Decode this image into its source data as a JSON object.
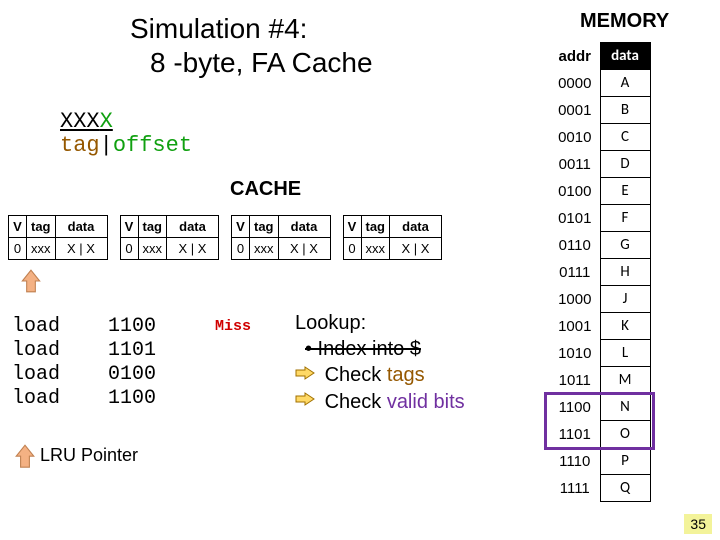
{
  "title_line1": "Simulation #4:",
  "title_line2": "8 -byte, FA Cache",
  "addr_format": {
    "x_black_count": 3,
    "x_green_count": 1,
    "tag_label": "tag",
    "offset_label": "offset",
    "tag_color": "#955800",
    "offset_color": "#10a010"
  },
  "cache_title": "CACHE",
  "cache_blocks": [
    {
      "V": "0",
      "tag": "xxx",
      "data": "X | X"
    },
    {
      "V": "0",
      "tag": "xxx",
      "data": "X | X"
    },
    {
      "V": "0",
      "tag": "xxx",
      "data": "X | X"
    },
    {
      "V": "0",
      "tag": "xxx",
      "data": "X | X"
    }
  ],
  "cache_header": {
    "V": "V",
    "tag": "tag",
    "data": "data"
  },
  "lru_arrow_color": "#f4b183",
  "loads": [
    {
      "op": "load",
      "addr": "1100"
    },
    {
      "op": "load",
      "addr": "1101"
    },
    {
      "op": "load",
      "addr": "0100"
    },
    {
      "op": "load",
      "addr": "1100"
    }
  ],
  "miss_label": "Miss",
  "miss_color": "#d00000",
  "lookup": {
    "title": "Lookup:",
    "item_strike": "• Index into $",
    "item_tags_pre": "Check ",
    "item_tags_word": "tags",
    "item_valid_pre": "Check ",
    "item_valid_word": "valid bits",
    "bullet_arrow_fill": "#ffd966",
    "bullet_arrow_stroke": "#a07000"
  },
  "lru_pointer_label": "LRU Pointer",
  "memory": {
    "title": "MEMORY",
    "addr_head": "addr",
    "data_head": "data",
    "rows": [
      {
        "addr": "0000",
        "data": "A"
      },
      {
        "addr": "0001",
        "data": "B"
      },
      {
        "addr": "0010",
        "data": "C"
      },
      {
        "addr": "0011",
        "data": "D"
      },
      {
        "addr": "0100",
        "data": "E"
      },
      {
        "addr": "0101",
        "data": "F"
      },
      {
        "addr": "0110",
        "data": "G"
      },
      {
        "addr": "0111",
        "data": "H"
      },
      {
        "addr": "1000",
        "data": "J"
      },
      {
        "addr": "1001",
        "data": "K"
      },
      {
        "addr": "1010",
        "data": "L"
      },
      {
        "addr": "1011",
        "data": "M"
      },
      {
        "addr": "1100",
        "data": "N"
      },
      {
        "addr": "1101",
        "data": "O"
      },
      {
        "addr": "1110",
        "data": "P"
      },
      {
        "addr": "1111",
        "data": "Q"
      }
    ],
    "highlight_rows": [
      12,
      13
    ],
    "highlight_color": "#7030a0"
  },
  "slide_number": "35",
  "colors": {
    "green": "#10a010",
    "brown": "#955800",
    "purple": "#7030a0",
    "miss": "#d00000"
  }
}
